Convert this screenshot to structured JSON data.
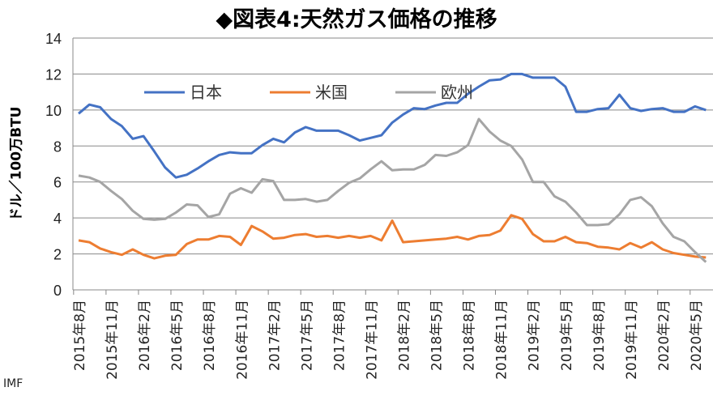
{
  "chart_data": {
    "type": "line",
    "title": "◆図表4:天然ガス価格の推移",
    "xlabel": "",
    "ylabel": "ドル／100万BTU",
    "ylim": [
      0,
      14
    ],
    "yticks": [
      0,
      2,
      4,
      6,
      8,
      10,
      12,
      14
    ],
    "grid": true,
    "legend_position": "top-left",
    "x_start": "2015-08",
    "x_end": "2020-06",
    "x_tick_labels": [
      "2015年8月",
      "2015年11月",
      "2016年2月",
      "2016年5月",
      "2016年8月",
      "2016年11月",
      "2017年2月",
      "2017年5月",
      "2017年8月",
      "2017年11月",
      "2018年2月",
      "2018年5月",
      "2018年8月",
      "2018年11月",
      "2019年2月",
      "2019年5月",
      "2019年8月",
      "2019年11月",
      "2020年2月",
      "2020年5月"
    ],
    "series": [
      {
        "name": "日本",
        "color": "#4472C4",
        "values": [
          9.8,
          10.3,
          10.15,
          9.5,
          9.1,
          8.4,
          8.55,
          7.7,
          6.8,
          6.25,
          6.4,
          6.75,
          7.15,
          7.5,
          7.65,
          7.6,
          7.6,
          8.05,
          8.4,
          8.2,
          8.75,
          9.05,
          8.85,
          8.85,
          8.85,
          8.6,
          8.3,
          8.45,
          8.6,
          9.3,
          9.75,
          10.1,
          10.05,
          10.25,
          10.4,
          10.4,
          10.9,
          11.3,
          11.65,
          11.7,
          12.0,
          12.0,
          11.8,
          11.8,
          11.8,
          11.3,
          9.9,
          9.9,
          10.05,
          10.1,
          10.85,
          10.1,
          9.95,
          10.05,
          10.1,
          9.9,
          9.9,
          10.2,
          10.0
        ]
      },
      {
        "name": "米国",
        "color": "#ED7D31",
        "values": [
          2.75,
          2.65,
          2.3,
          2.1,
          1.95,
          2.25,
          1.95,
          1.75,
          1.9,
          1.95,
          2.55,
          2.8,
          2.8,
          3.0,
          2.95,
          2.5,
          3.55,
          3.25,
          2.85,
          2.9,
          3.05,
          3.1,
          2.95,
          3.0,
          2.9,
          3.0,
          2.9,
          3.0,
          2.75,
          3.85,
          2.65,
          2.7,
          2.75,
          2.8,
          2.85,
          2.95,
          2.8,
          3.0,
          3.05,
          3.3,
          4.15,
          3.95,
          3.1,
          2.7,
          2.7,
          2.95,
          2.65,
          2.6,
          2.4,
          2.35,
          2.25,
          2.6,
          2.35,
          2.65,
          2.25,
          2.05,
          1.95,
          1.85,
          1.8
        ]
      },
      {
        "name": "欧州",
        "color": "#A5A5A5",
        "values": [
          6.35,
          6.25,
          6.0,
          5.5,
          5.05,
          4.4,
          3.95,
          3.9,
          3.95,
          4.3,
          4.75,
          4.7,
          4.05,
          4.2,
          5.35,
          5.65,
          5.4,
          6.15,
          6.05,
          5.0,
          5.0,
          5.05,
          4.9,
          5.0,
          5.5,
          5.95,
          6.2,
          6.7,
          7.15,
          6.65,
          6.7,
          6.7,
          6.95,
          7.5,
          7.45,
          7.65,
          8.05,
          9.5,
          8.8,
          8.3,
          8.0,
          7.25,
          6.0,
          6.0,
          5.2,
          4.9,
          4.3,
          3.6,
          3.6,
          3.65,
          4.2,
          5.0,
          5.15,
          4.65,
          3.7,
          2.95,
          2.7,
          2.1,
          1.55
        ]
      }
    ],
    "source": "IMF"
  }
}
